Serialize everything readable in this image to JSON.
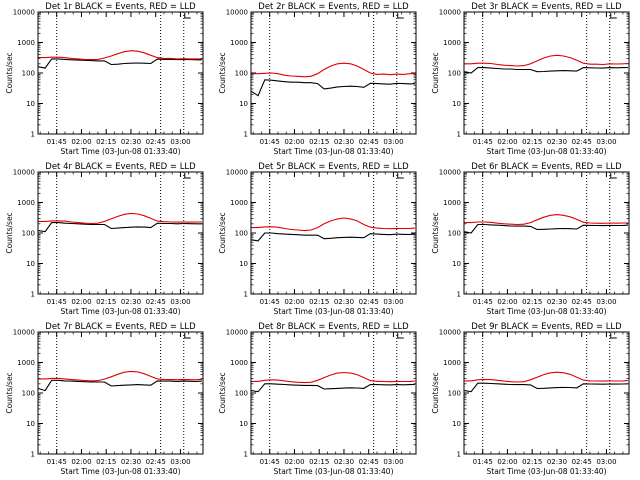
{
  "chart_data": {
    "type": "line",
    "layout": "3x3 grid",
    "shared": {
      "ylabel": "Counts/sec",
      "xlabel": "Start Time (03-Jun-08 01:33:40)",
      "yscale": "log",
      "ylim": [
        1,
        10000
      ],
      "yticks": [
        "1",
        "10",
        "100",
        "1000",
        "10000"
      ],
      "xlim": [
        "01:33:40",
        "03:13:40"
      ],
      "xticks": [
        "01:45",
        "02:00",
        "02:15",
        "02:30",
        "02:45",
        "03:00"
      ],
      "vlines": [
        "01:45",
        "02:48",
        "03:02"
      ],
      "series_colors": {
        "events": "#000000",
        "lld": "#e00000"
      },
      "x": [
        "01:34",
        "01:38",
        "01:42",
        "01:46",
        "01:50",
        "01:54",
        "01:58",
        "02:02",
        "02:06",
        "02:10",
        "02:14",
        "02:18",
        "02:22",
        "02:26",
        "02:30",
        "02:34",
        "02:38",
        "02:42",
        "02:46",
        "02:50",
        "02:54",
        "02:58",
        "03:02",
        "03:06",
        "03:10",
        "03:13"
      ]
    },
    "panels": [
      {
        "title": "Det 1r BLACK = Events, RED = LLD",
        "series": [
          {
            "values": [
              160,
              145,
              290,
              290,
              280,
              270,
              265,
              260,
              255,
              250,
              250,
              190,
              195,
              205,
              210,
              212,
              210,
              205,
              285,
              280,
              280,
              275,
              280,
              275,
              270,
              270
            ]
          },
          {
            "values": [
              320,
              320,
              330,
              330,
              320,
              300,
              290,
              280,
              275,
              280,
              310,
              360,
              430,
              500,
              540,
              520,
              460,
              380,
              320,
              300,
              300,
              290,
              295,
              290,
              290,
              290
            ]
          }
        ]
      },
      {
        "title": "Det 2r BLACK = Events, RED = LLD",
        "series": [
          {
            "values": [
              25,
              18,
              60,
              58,
              55,
              52,
              50,
              50,
              48,
              48,
              45,
              30,
              32,
              35,
              36,
              37,
              36,
              34,
              46,
              45,
              44,
              43,
              46,
              45,
              44,
              45
            ]
          },
          {
            "values": [
              95,
              95,
              98,
              100,
              95,
              85,
              80,
              78,
              75,
              78,
              95,
              130,
              170,
              200,
              210,
              200,
              170,
              130,
              100,
              90,
              92,
              88,
              92,
              90,
              95,
              95
            ]
          }
        ]
      },
      {
        "title": "Det 3r BLACK = Events, RED = LLD",
        "series": [
          {
            "values": [
              110,
              100,
              150,
              150,
              145,
              140,
              135,
              135,
              130,
              130,
              130,
              110,
              112,
              115,
              118,
              120,
              118,
              115,
              150,
              148,
              146,
              145,
              150,
              148,
              150,
              150
            ]
          },
          {
            "values": [
              200,
              200,
              210,
              210,
              205,
              190,
              180,
              175,
              170,
              175,
              200,
              250,
              310,
              360,
              380,
              360,
              320,
              260,
              210,
              195,
              195,
              190,
              200,
              198,
              200,
              205
            ]
          }
        ]
      },
      {
        "title": "Det 4r BLACK = Events, RED = LLD",
        "series": [
          {
            "values": [
              120,
              110,
              220,
              220,
              210,
              205,
              200,
              195,
              190,
              190,
              190,
              140,
              145,
              150,
              155,
              158,
              156,
              150,
              210,
              205,
              205,
              200,
              205,
              202,
              200,
              200
            ]
          },
          {
            "values": [
              240,
              240,
              250,
              250,
              245,
              230,
              220,
              210,
              205,
              210,
              240,
              290,
              350,
              410,
              440,
              420,
              370,
              300,
              245,
              235,
              230,
              228,
              230,
              228,
              230,
              230
            ]
          }
        ]
      },
      {
        "title": "Det 5r BLACK = Events, RED = LLD",
        "series": [
          {
            "values": [
              60,
              55,
              100,
              100,
              95,
              92,
              90,
              88,
              85,
              85,
              85,
              65,
              67,
              70,
              72,
              73,
              72,
              70,
              95,
              92,
              90,
              88,
              92,
              90,
              90,
              92
            ]
          },
          {
            "values": [
              150,
              150,
              158,
              160,
              155,
              140,
              130,
              125,
              120,
              125,
              150,
              200,
              250,
              290,
              310,
              290,
              250,
              190,
              155,
              145,
              140,
              138,
              142,
              140,
              142,
              145
            ]
          }
        ]
      },
      {
        "title": "Det 6r BLACK = Events, RED = LLD",
        "series": [
          {
            "values": [
              110,
              100,
              190,
              190,
              185,
              180,
              175,
              170,
              168,
              168,
              165,
              130,
              132,
              135,
              138,
              140,
              138,
              135,
              180,
              178,
              176,
              175,
              178,
              176,
              178,
              180
            ]
          },
          {
            "values": [
              220,
              220,
              230,
              230,
              225,
              210,
              200,
              195,
              190,
              195,
              220,
              270,
              330,
              380,
              400,
              380,
              340,
              280,
              225,
              212,
              210,
              208,
              212,
              210,
              212,
              215
            ]
          }
        ]
      },
      {
        "title": "Det 7r BLACK = Events, RED = LLD",
        "series": [
          {
            "values": [
              140,
              120,
              260,
              260,
              250,
              245,
              240,
              235,
              230,
              230,
              230,
              170,
              175,
              180,
              185,
              188,
              185,
              180,
              250,
              245,
              245,
              240,
              245,
              242,
              240,
              245
            ]
          },
          {
            "values": [
              290,
              290,
              300,
              300,
              290,
              275,
              265,
              255,
              250,
              255,
              285,
              340,
              410,
              480,
              510,
              490,
              430,
              350,
              290,
              280,
              275,
              272,
              275,
              272,
              275,
              280
            ]
          }
        ]
      },
      {
        "title": "Det 8r BLACK = Events, RED = LLD",
        "series": [
          {
            "values": [
              120,
              110,
              200,
              200,
              195,
              190,
              185,
              180,
              178,
              178,
              175,
              135,
              138,
              142,
              145,
              148,
              146,
              142,
              190,
              188,
              186,
              185,
              188,
              186,
              188,
              190
            ]
          },
          {
            "values": [
              240,
              240,
              260,
              270,
              265,
              250,
              235,
              225,
              220,
              225,
              260,
              320,
              390,
              450,
              470,
              450,
              400,
              320,
              255,
              240,
              238,
              235,
              240,
              238,
              240,
              245
            ]
          }
        ]
      },
      {
        "title": "Det 9r BLACK = Events, RED = LLD",
        "series": [
          {
            "values": [
              120,
              110,
              210,
              210,
              205,
              200,
              195,
              190,
              188,
              188,
              185,
              140,
              143,
              147,
              150,
              153,
              151,
              147,
              200,
              198,
              196,
              195,
              198,
              196,
              198,
              200
            ]
          },
          {
            "values": [
              250,
              250,
              270,
              280,
              275,
              260,
              245,
              235,
              230,
              235,
              270,
              330,
              400,
              460,
              480,
              460,
              410,
              330,
              265,
              250,
              248,
              245,
              250,
              248,
              250,
              255
            ]
          }
        ]
      }
    ]
  }
}
